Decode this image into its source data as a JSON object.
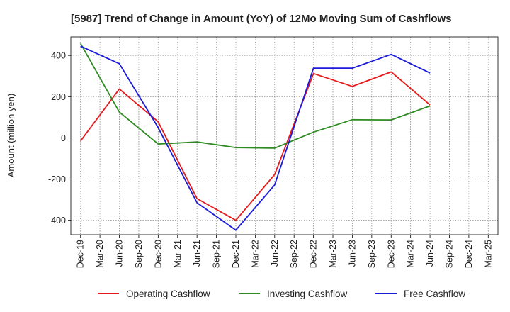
{
  "chart_data": {
    "type": "line",
    "title": "[5987]  Trend of Change in Amount (YoY) of 12Mo Moving Sum of Cashflows",
    "xlabel": "",
    "ylabel": "Amount (million yen)",
    "categories": [
      "Dec-19",
      "Mar-20",
      "Jun-20",
      "Sep-20",
      "Dec-20",
      "Mar-21",
      "Jun-21",
      "Sep-21",
      "Dec-21",
      "Mar-22",
      "Jun-22",
      "Sep-22",
      "Dec-22",
      "Mar-23",
      "Jun-23",
      "Sep-23",
      "Dec-23",
      "Mar-24",
      "Jun-24",
      "Sep-24",
      "Dec-24",
      "Mar-25"
    ],
    "yticks": [
      -400,
      -200,
      0,
      200,
      400
    ],
    "ytick_labels": [
      "-400",
      "-200",
      "0",
      "200",
      "400"
    ],
    "ylim": [
      -470,
      490
    ],
    "grid": true,
    "legend_position": "bottom",
    "series": [
      {
        "name": "Operating Cashflow",
        "color": "#e41a1c",
        "values": [
          -15,
          null,
          237,
          null,
          78,
          null,
          -295,
          null,
          -400,
          null,
          -178,
          null,
          312,
          null,
          250,
          null,
          320,
          null,
          160,
          null,
          null,
          null
        ]
      },
      {
        "name": "Investing Cashflow",
        "color": "#2e8b22",
        "values": [
          458,
          null,
          125,
          null,
          -30,
          null,
          -20,
          null,
          -47,
          null,
          -50,
          null,
          28,
          null,
          88,
          null,
          87,
          null,
          155,
          null,
          null,
          null
        ]
      },
      {
        "name": "Free Cashflow",
        "color": "#1a1adb",
        "values": [
          445,
          null,
          360,
          null,
          50,
          null,
          -315,
          null,
          -448,
          null,
          -228,
          null,
          338,
          null,
          338,
          null,
          405,
          null,
          315,
          null,
          null,
          null
        ]
      }
    ]
  }
}
